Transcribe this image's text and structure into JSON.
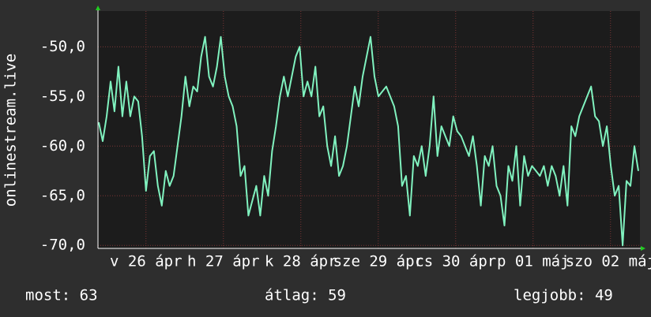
{
  "chart_data": {
    "type": "line",
    "y_label": "onlinestream.live",
    "color": "#80f2bf",
    "grid": true,
    "ylim": [
      -70.3,
      -46.4
    ],
    "yticks": [
      {
        "value": -50,
        "label": "-50,0"
      },
      {
        "value": -55,
        "label": "-55,0"
      },
      {
        "value": -60,
        "label": "-60,0"
      },
      {
        "value": -65,
        "label": "-65,0"
      },
      {
        "value": -70,
        "label": "-70,0"
      }
    ],
    "xlim": [
      -0.62,
      6.38
    ],
    "xticks": [
      {
        "value": 0,
        "label": "v 26 ápr"
      },
      {
        "value": 1,
        "label": "h 27 ápr"
      },
      {
        "value": 2,
        "label": "k 28 ápr"
      },
      {
        "value": 3,
        "label": "sze 29 ápr"
      },
      {
        "value": 4,
        "label": "cs 30 ápr"
      },
      {
        "value": 5,
        "label": "p 01 máj"
      },
      {
        "value": 6,
        "label": "szo 02 máj"
      }
    ],
    "values": [
      -57.6,
      -59.5,
      -57,
      -53.5,
      -56.5,
      -52,
      -57,
      -53.5,
      -57,
      -55,
      -55.5,
      -59,
      -64.5,
      -61,
      -60.5,
      -64,
      -66,
      -62.5,
      -64,
      -63,
      -60,
      -57,
      -53,
      -56,
      -54,
      -54.5,
      -51,
      -49,
      -53,
      -54,
      -52,
      -49,
      -53,
      -55,
      -56,
      -58,
      -63,
      -62,
      -67,
      -65.5,
      -64,
      -67,
      -63,
      -65,
      -60.5,
      -58,
      -55,
      -53,
      -55,
      -53,
      -51,
      -50,
      -55,
      -53.5,
      -55,
      -52,
      -57,
      -56,
      -60,
      -62,
      -59,
      -63,
      -62,
      -60,
      -57,
      -54,
      -56,
      -53,
      -51,
      -49,
      -53,
      -55,
      -54.5,
      -54,
      -55,
      -56,
      -58,
      -64,
      -63,
      -67,
      -61,
      -62,
      -60,
      -63,
      -60,
      -55,
      -61,
      -58,
      -59,
      -60,
      -57,
      -58.5,
      -59,
      -60,
      -61,
      -59,
      -62,
      -66,
      -61,
      -62,
      -60,
      -64,
      -65,
      -68,
      -62,
      -63.5,
      -60,
      -66,
      -61,
      -63,
      -62,
      -62.5,
      -63,
      -62,
      -64,
      -62,
      -63,
      -65,
      -62,
      -66,
      -58,
      -59,
      -57,
      -56,
      -55,
      -54,
      -57,
      -57.5,
      -60,
      -58,
      -62,
      -65,
      -64,
      -70,
      -63.5,
      -64,
      -60,
      -62.5
    ],
    "summary": [
      "most: 63",
      "átlag: 59",
      "legjobb: 49"
    ]
  }
}
